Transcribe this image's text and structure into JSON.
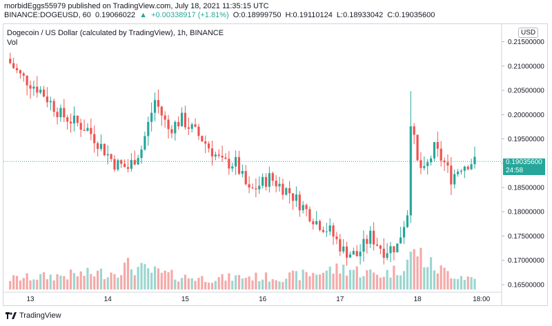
{
  "header": {
    "published": "morbidEggs55979 published on TradingView.com, July 18, 2021 11:35:15 UTC",
    "symbol": "BINANCE:DOGEUSD, 60",
    "last": "0.19066022",
    "change_icon": "triangle-up-icon",
    "change": "+0.00338917 (+1.81%)",
    "open": "O:0.18999750",
    "high": "H:0.19110124",
    "low": "L:0.18933042",
    "close": "C:0.19035600"
  },
  "chart_title": "Dogecoin / US Dollar (calculated by TradingView), 1h, BINANCE",
  "vol_label": "Vol",
  "currency_button": "USD",
  "price_label": {
    "price": "0.19035600",
    "countdown": "24:58"
  },
  "brand": {
    "name": "TradingView",
    "icon": "tradingview-logo-icon"
  },
  "colors": {
    "up": "#26a69a",
    "down": "#ef5350",
    "vol_up": "#9bd6cf",
    "vol_down": "#f4a9a8"
  },
  "chart_data": {
    "type": "candlestick",
    "title": "Dogecoin / US Dollar (calculated by TradingView), 1h, BINANCE",
    "ylim": [
      0.164,
      0.2165
    ],
    "y_ticks": [
      "0.21500000",
      "0.21000000",
      "0.20500000",
      "0.20000000",
      "0.19500000",
      "0.19000000",
      "0.18500000",
      "0.18000000",
      "0.17500000",
      "0.17000000",
      "0.16500000"
    ],
    "x_ticks": [
      "13",
      "14",
      "15",
      "16",
      "17",
      "18",
      "18:00"
    ],
    "x_tick_index": [
      6,
      29,
      52,
      75,
      98,
      121,
      140
    ],
    "x_range": [
      -2,
      146
    ],
    "current_price": 0.190356,
    "trend_points": [
      [
        0,
        0.2115
      ],
      [
        4,
        0.208
      ],
      [
        10,
        0.205
      ],
      [
        16,
        0.2
      ],
      [
        24,
        0.197
      ],
      [
        32,
        0.19
      ],
      [
        36,
        0.189
      ],
      [
        40,
        0.193
      ],
      [
        44,
        0.203
      ],
      [
        48,
        0.197
      ],
      [
        52,
        0.199
      ],
      [
        58,
        0.195
      ],
      [
        64,
        0.19
      ],
      [
        68,
        0.19
      ],
      [
        72,
        0.184
      ],
      [
        78,
        0.187
      ],
      [
        84,
        0.184
      ],
      [
        88,
        0.181
      ],
      [
        92,
        0.178
      ],
      [
        96,
        0.176
      ],
      [
        100,
        0.172
      ],
      [
        104,
        0.171
      ],
      [
        108,
        0.175
      ],
      [
        112,
        0.172
      ],
      [
        116,
        0.173
      ],
      [
        119,
        0.18
      ],
      [
        120,
        0.199
      ],
      [
        122,
        0.19
      ],
      [
        124,
        0.188
      ],
      [
        127,
        0.193
      ],
      [
        130,
        0.19
      ],
      [
        132,
        0.187
      ],
      [
        135,
        0.1895
      ],
      [
        138,
        0.1903
      ]
    ],
    "volume_profile": [
      [
        0,
        0.25
      ],
      [
        10,
        0.3
      ],
      [
        20,
        0.35
      ],
      [
        30,
        0.4
      ],
      [
        35,
        0.55
      ],
      [
        40,
        0.45
      ],
      [
        50,
        0.3
      ],
      [
        60,
        0.25
      ],
      [
        70,
        0.3
      ],
      [
        80,
        0.28
      ],
      [
        88,
        0.35
      ],
      [
        95,
        0.45
      ],
      [
        100,
        0.5
      ],
      [
        105,
        0.4
      ],
      [
        110,
        0.35
      ],
      [
        115,
        0.45
      ],
      [
        118,
        0.7
      ],
      [
        121,
        0.9
      ],
      [
        124,
        0.6
      ],
      [
        128,
        0.45
      ],
      [
        132,
        0.35
      ],
      [
        138,
        0.25
      ]
    ]
  }
}
